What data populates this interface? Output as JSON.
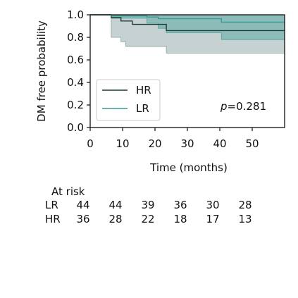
{
  "chart_data": {
    "type": "line",
    "subtype": "kaplan-meier",
    "title": "",
    "xlabel": "Time (months)",
    "ylabel": "DM free probability",
    "xlim": [
      0,
      60
    ],
    "ylim": [
      0,
      1.0
    ],
    "xticks": [
      0,
      10,
      20,
      30,
      40,
      50
    ],
    "yticks": [
      0.0,
      0.2,
      0.4,
      0.6,
      0.8,
      1.0
    ],
    "xtick_labels": [
      "0",
      "10",
      "20",
      "30",
      "40",
      "50"
    ],
    "ytick_labels": [
      "0.0",
      "0.2",
      "0.4",
      "0.6",
      "0.8",
      "1.0"
    ],
    "grid": false,
    "legend_position": "lower-left",
    "series": [
      {
        "name": "HR",
        "color": "#1f3a36",
        "band_color": "#6f8f8b",
        "steps": [
          [
            0,
            1.0
          ],
          [
            6.5,
            0.975
          ],
          [
            9.5,
            0.945
          ],
          [
            13,
            0.915
          ],
          [
            23.5,
            0.86
          ],
          [
            60,
            0.86
          ]
        ],
        "ci_lower": [
          [
            0,
            1.0
          ],
          [
            6.5,
            0.8
          ],
          [
            9.5,
            0.76
          ],
          [
            11,
            0.72
          ],
          [
            23.5,
            0.66
          ],
          [
            60,
            0.66
          ]
        ],
        "ci_upper": [
          [
            0,
            1.0
          ],
          [
            60,
            1.0
          ]
        ]
      },
      {
        "name": "LR",
        "color": "#3a9a94",
        "band_color": "#3a9a94",
        "steps": [
          [
            0,
            1.0
          ],
          [
            6.5,
            0.99
          ],
          [
            17.5,
            0.98
          ],
          [
            21,
            0.965
          ],
          [
            40.5,
            0.935
          ],
          [
            60,
            0.935
          ]
        ],
        "ci_lower": [
          [
            0,
            1.0
          ],
          [
            6.5,
            0.97
          ],
          [
            17.5,
            0.925
          ],
          [
            21,
            0.88
          ],
          [
            23.5,
            0.84
          ],
          [
            40.5,
            0.78
          ],
          [
            60,
            0.78
          ]
        ],
        "ci_upper": [
          [
            0,
            1.0
          ],
          [
            60,
            1.0
          ]
        ]
      }
    ],
    "annotation": "p=0.281",
    "risk_table": {
      "header": "At risk",
      "rows": [
        {
          "label": "LR",
          "values": [
            "44",
            "44",
            "39",
            "36",
            "30",
            "28"
          ]
        },
        {
          "label": "HR",
          "values": [
            "36",
            "28",
            "22",
            "18",
            "17",
            "13"
          ]
        }
      ]
    }
  }
}
